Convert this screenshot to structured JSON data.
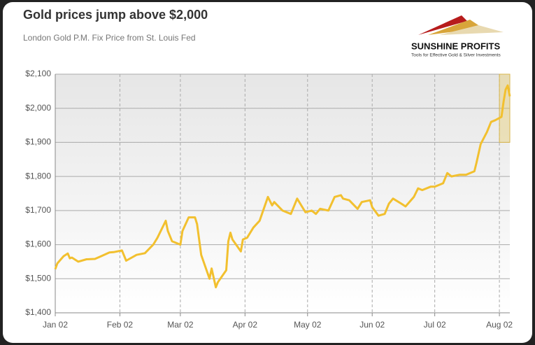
{
  "chart_data": {
    "type": "line",
    "title": "Gold prices jump above $2,000",
    "subtitle": "London Gold P.M. Fix Price from St. Louis Fed",
    "logo": {
      "name": "SUNSHINE PROFITS",
      "tagline": "Tools for Effective Gold & Silver Investments"
    },
    "x": [
      "01-02",
      "01-03",
      "01-06",
      "01-08",
      "01-09",
      "01-10",
      "01-13",
      "01-17",
      "01-21",
      "01-24",
      "01-28",
      "01-30",
      "02-03",
      "02-05",
      "02-10",
      "02-14",
      "02-18",
      "02-20",
      "02-24",
      "02-25",
      "02-27",
      "03-02",
      "03-03",
      "03-06",
      "03-09",
      "03-10",
      "03-12",
      "03-16",
      "03-17",
      "03-19",
      "03-20",
      "03-24",
      "03-25",
      "03-26",
      "03-27",
      "03-31",
      "04-01",
      "04-03",
      "04-06",
      "04-09",
      "04-13",
      "04-15",
      "04-16",
      "04-20",
      "04-24",
      "04-27",
      "04-29",
      "05-01",
      "05-04",
      "05-06",
      "05-08",
      "05-12",
      "05-15",
      "05-18",
      "05-19",
      "05-22",
      "05-26",
      "05-28",
      "06-01",
      "06-02",
      "06-05",
      "06-08",
      "06-10",
      "06-12",
      "06-16",
      "06-18",
      "06-22",
      "06-24",
      "06-26",
      "06-30",
      "07-02",
      "07-06",
      "07-08",
      "07-10",
      "07-14",
      "07-17",
      "07-21",
      "07-22",
      "07-24",
      "07-27",
      "07-29",
      "07-31",
      "08-03",
      "08-04",
      "08-05",
      "08-06",
      "08-07"
    ],
    "series": [
      {
        "name": "London Gold P.M. Fix",
        "color": "#f2c02f",
        "values": [
          1528,
          1545,
          1566,
          1574,
          1560,
          1562,
          1550,
          1557,
          1558,
          1566,
          1577,
          1578,
          1583,
          1553,
          1570,
          1575,
          1600,
          1620,
          1670,
          1640,
          1610,
          1600,
          1640,
          1680,
          1680,
          1660,
          1570,
          1500,
          1530,
          1475,
          1490,
          1525,
          1610,
          1635,
          1615,
          1580,
          1615,
          1620,
          1650,
          1670,
          1740,
          1715,
          1725,
          1700,
          1690,
          1735,
          1715,
          1695,
          1700,
          1690,
          1705,
          1700,
          1740,
          1745,
          1735,
          1730,
          1705,
          1725,
          1730,
          1710,
          1685,
          1690,
          1720,
          1735,
          1720,
          1712,
          1740,
          1765,
          1760,
          1770,
          1770,
          1780,
          1810,
          1800,
          1805,
          1805,
          1815,
          1840,
          1895,
          1930,
          1960,
          1965,
          1975,
          2020,
          2055,
          2067,
          2035
        ]
      }
    ],
    "xlim": [
      "01-02",
      "08-07"
    ],
    "xticks": [
      {
        "value": "01-02",
        "label": "Jan 02"
      },
      {
        "value": "02-02",
        "label": "Feb 02"
      },
      {
        "value": "03-02",
        "label": "Mar 02"
      },
      {
        "value": "04-02",
        "label": "Apr 02"
      },
      {
        "value": "05-02",
        "label": "May 02"
      },
      {
        "value": "06-02",
        "label": "Jun 02"
      },
      {
        "value": "07-02",
        "label": "Jul 02"
      },
      {
        "value": "08-02",
        "label": "Aug 02"
      }
    ],
    "ylim": [
      1400,
      2100
    ],
    "yticks": [
      {
        "value": 1400,
        "label": "$1,400"
      },
      {
        "value": 1500,
        "label": "$1,500"
      },
      {
        "value": 1600,
        "label": "$1,600"
      },
      {
        "value": 1700,
        "label": "$1,700"
      },
      {
        "value": 1800,
        "label": "$1,800"
      },
      {
        "value": 1900,
        "label": "$1,900"
      },
      {
        "value": 2000,
        "label": "$2,000"
      },
      {
        "value": 2100,
        "label": "$2,100"
      }
    ],
    "highlight": {
      "x": [
        "08-02",
        "08-07"
      ],
      "y": [
        1900,
        2100
      ]
    },
    "grid": true
  }
}
